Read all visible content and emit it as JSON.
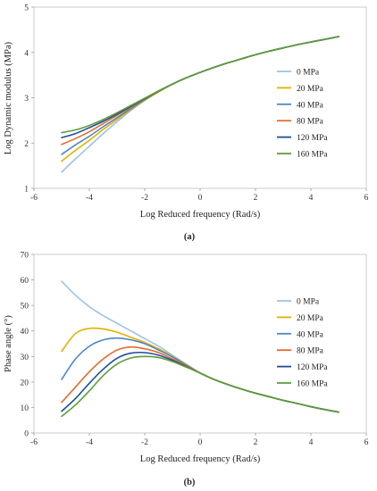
{
  "chart_data": [
    {
      "type": "line",
      "caption": "(a)",
      "xlabel": "Log Reduced frequency (Rad/s)",
      "ylabel": "Log Dynamic modulus (MPa)",
      "xlim": [
        -6,
        6
      ],
      "ylim": [
        1,
        5
      ],
      "xticks": [
        -6,
        -4,
        -2,
        0,
        2,
        4,
        6
      ],
      "yticks": [
        1,
        2,
        3,
        4,
        5
      ],
      "grid": false,
      "legend_position": "right",
      "x": [
        -5,
        -4.5,
        -4,
        -3.5,
        -3,
        -2.5,
        -2,
        -1.5,
        -1,
        -0.5,
        0,
        0.5,
        1,
        1.5,
        2,
        2.5,
        3,
        3.5,
        4,
        4.5,
        5
      ],
      "series": [
        {
          "name": "0 MPa",
          "color": "#9DC3E6",
          "values": [
            1.36,
            1.65,
            1.93,
            2.21,
            2.47,
            2.72,
            2.94,
            3.13,
            3.3,
            3.44,
            3.56,
            3.67,
            3.77,
            3.86,
            3.95,
            4.03,
            4.1,
            4.17,
            4.23,
            4.29,
            4.35
          ]
        },
        {
          "name": "20 MPa",
          "color": "#E2B100",
          "values": [
            1.6,
            1.84,
            2.06,
            2.3,
            2.52,
            2.74,
            2.95,
            3.13,
            3.3,
            3.44,
            3.56,
            3.67,
            3.77,
            3.86,
            3.95,
            4.03,
            4.1,
            4.17,
            4.23,
            4.29,
            4.35
          ]
        },
        {
          "name": "40 MPa",
          "color": "#4F86C6",
          "values": [
            1.75,
            1.96,
            2.15,
            2.36,
            2.56,
            2.76,
            2.96,
            3.14,
            3.3,
            3.44,
            3.56,
            3.67,
            3.77,
            3.86,
            3.95,
            4.03,
            4.1,
            4.17,
            4.23,
            4.29,
            4.35
          ]
        },
        {
          "name": "80 MPa",
          "color": "#E36C2F",
          "values": [
            1.97,
            2.1,
            2.25,
            2.43,
            2.61,
            2.79,
            2.97,
            3.14,
            3.3,
            3.44,
            3.56,
            3.67,
            3.77,
            3.86,
            3.95,
            4.03,
            4.1,
            4.17,
            4.23,
            4.29,
            4.35
          ]
        },
        {
          "name": "120 MPa",
          "color": "#1F4E96",
          "values": [
            2.12,
            2.21,
            2.34,
            2.48,
            2.64,
            2.81,
            2.98,
            3.15,
            3.3,
            3.44,
            3.56,
            3.67,
            3.77,
            3.86,
            3.95,
            4.03,
            4.1,
            4.17,
            4.23,
            4.29,
            4.35
          ]
        },
        {
          "name": "160 MPa",
          "color": "#5B9E3A",
          "values": [
            2.23,
            2.29,
            2.39,
            2.52,
            2.67,
            2.83,
            2.99,
            3.15,
            3.3,
            3.44,
            3.56,
            3.67,
            3.77,
            3.86,
            3.95,
            4.03,
            4.1,
            4.17,
            4.23,
            4.29,
            4.35
          ]
        }
      ]
    },
    {
      "type": "line",
      "caption": "(b)",
      "xlabel": "Log Reduced frequency (Rad/s)",
      "ylabel": "Phase angle (°)",
      "xlim": [
        -6,
        6
      ],
      "ylim": [
        0,
        70
      ],
      "xticks": [
        -6,
        -4,
        -2,
        0,
        2,
        4,
        6
      ],
      "yticks": [
        0,
        10,
        20,
        30,
        40,
        50,
        60,
        70
      ],
      "grid": false,
      "legend_position": "right",
      "x": [
        -5,
        -4.5,
        -4,
        -3.5,
        -3,
        -2.5,
        -2,
        -1.5,
        -1,
        -0.5,
        0,
        0.5,
        1,
        1.5,
        2,
        2.5,
        3,
        3.5,
        4,
        4.5,
        5
      ],
      "series": [
        {
          "name": "0 MPa",
          "color": "#9DC3E6",
          "values": [
            59.5,
            54,
            49.5,
            46,
            43,
            40,
            37,
            34,
            30.5,
            27,
            23.5,
            21,
            19,
            17.2,
            15.6,
            14.2,
            12.8,
            11.6,
            10.3,
            9.2,
            8.2
          ]
        },
        {
          "name": "20 MPa",
          "color": "#E2B100",
          "values": [
            32,
            39,
            41,
            40.8,
            39.5,
            37.5,
            35.5,
            33,
            30,
            26.8,
            23.5,
            21,
            19,
            17.2,
            15.6,
            14.2,
            12.8,
            11.6,
            10.3,
            9.2,
            8.2
          ]
        },
        {
          "name": "40 MPa",
          "color": "#4F86C6",
          "values": [
            21,
            29,
            34,
            36.5,
            37.2,
            36.5,
            35,
            32.5,
            29.8,
            26.6,
            23.5,
            21,
            19,
            17.2,
            15.6,
            14.2,
            12.8,
            11.6,
            10.3,
            9.2,
            8.2
          ]
        },
        {
          "name": "80 MPa",
          "color": "#E36C2F",
          "values": [
            12,
            18,
            24,
            29,
            32.5,
            33.7,
            33,
            31.5,
            29,
            26.3,
            23.5,
            21,
            19,
            17.2,
            15.6,
            14.2,
            12.8,
            11.6,
            10.3,
            9.2,
            8.2
          ]
        },
        {
          "name": "120 MPa",
          "color": "#1F4E96",
          "values": [
            8.5,
            13.5,
            19.5,
            25,
            29.3,
            31.3,
            31.5,
            30.5,
            28.5,
            26,
            23.5,
            21,
            19,
            17.2,
            15.6,
            14.2,
            12.8,
            11.6,
            10.3,
            9.2,
            8.2
          ]
        },
        {
          "name": "160 MPa",
          "color": "#5B9E3A",
          "values": [
            6.5,
            11,
            16.5,
            22.5,
            27,
            29.4,
            30,
            29.6,
            28,
            25.8,
            23.5,
            21,
            19,
            17.2,
            15.6,
            14.2,
            12.8,
            11.6,
            10.3,
            9.2,
            8.2
          ]
        }
      ]
    }
  ]
}
